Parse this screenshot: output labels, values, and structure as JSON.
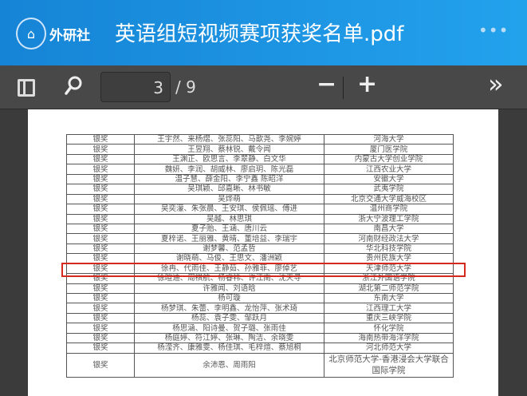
{
  "header": {
    "brand": "外研社",
    "logo_text": "外研社",
    "title": "英语组短视频赛项获奖名单.pdf",
    "more": "•••"
  },
  "toolbar": {
    "page": "3",
    "total": "/ 9",
    "zoom_out": "−",
    "zoom_in": "+",
    "more": "»"
  },
  "table": {
    "rows": [
      [
        "银奖",
        "王宇然、来杨熠、张蕊阳、马歆尧、李婉婷",
        "河海大学"
      ],
      [
        "银奖",
        "王昱翔、蔡林锐、戴令闻",
        "厦门医学院"
      ],
      [
        "银奖",
        "王渊正、欧思言、李翠静、白文华",
        "内蒙古大学创业学院"
      ],
      [
        "银奖",
        "魏妍、李润、胡威林、廖启玥、陈光磊",
        "江西农业大学"
      ],
      [
        "银奖",
        "温子慧、薛金阳、李宁鑫 陈昭洋",
        "安徽大学"
      ],
      [
        "银奖",
        "吴琪颖、邱嘉晰、林书敏",
        "武夷学院"
      ],
      [
        "银奖",
        "吴烨萌",
        "北京交通大学威海校区"
      ],
      [
        "银奖",
        "吴奕濛、朱张晨、王安琪、侯佩瑶、傅进",
        "温州商学院"
      ],
      [
        "银奖",
        "吴越、林思琪",
        "浙大宁波理工学院"
      ],
      [
        "银奖",
        "夏子贻、王涵、唐川云",
        "南昌大学"
      ],
      [
        "银奖",
        "夏梓诺、王丽雅、黄晴、董培益、李瑞宇",
        "河南财经政法大学"
      ],
      [
        "银奖",
        "谢梦馨、范孟哲",
        "华北科技学院"
      ],
      [
        "银奖",
        "谢晓萌、马俊、王思文、潘洲颖",
        "贵州民族大学"
      ],
      [
        "银奖",
        "徐冉、代雨佳、王静茹、孙雅菲、廖倬艺",
        "天津师范大学"
      ],
      [
        "银奖",
        "徐暄迪、周祺航、杨睿祎、许江南、沈天寻",
        "浙江外国语学院"
      ],
      [
        "银奖",
        "许雅闻、刘语晗",
        "湖北第二师范学院"
      ],
      [
        "银奖",
        "杨可璇",
        "东南大学"
      ],
      [
        "银奖",
        "杨梦琪、朱蕾、李明鑫、龙怡萍、张术琦",
        "江西理工大学"
      ],
      [
        "银奖",
        "杨蕊、袁子雯、邹跃月",
        "重庆三峡学院"
      ],
      [
        "银奖",
        "杨思涵、阳诗曼、贺子璐、张雨佳",
        "怀化学院"
      ],
      [
        "银奖",
        "杨庭婷、符江婷、张琳、陶洁、余晓雯",
        "海南热带海洋学院"
      ],
      [
        "银奖",
        "杨滢齐、康雅雯、杨佳琪、毛梓煊、蔡旭桐",
        "河北师范大学"
      ],
      [
        "银奖",
        "余沛恩、周雨阳",
        "北京师范大学-香港浸会大学联合国际学院"
      ]
    ]
  },
  "highlight_color": "#d42a1e"
}
